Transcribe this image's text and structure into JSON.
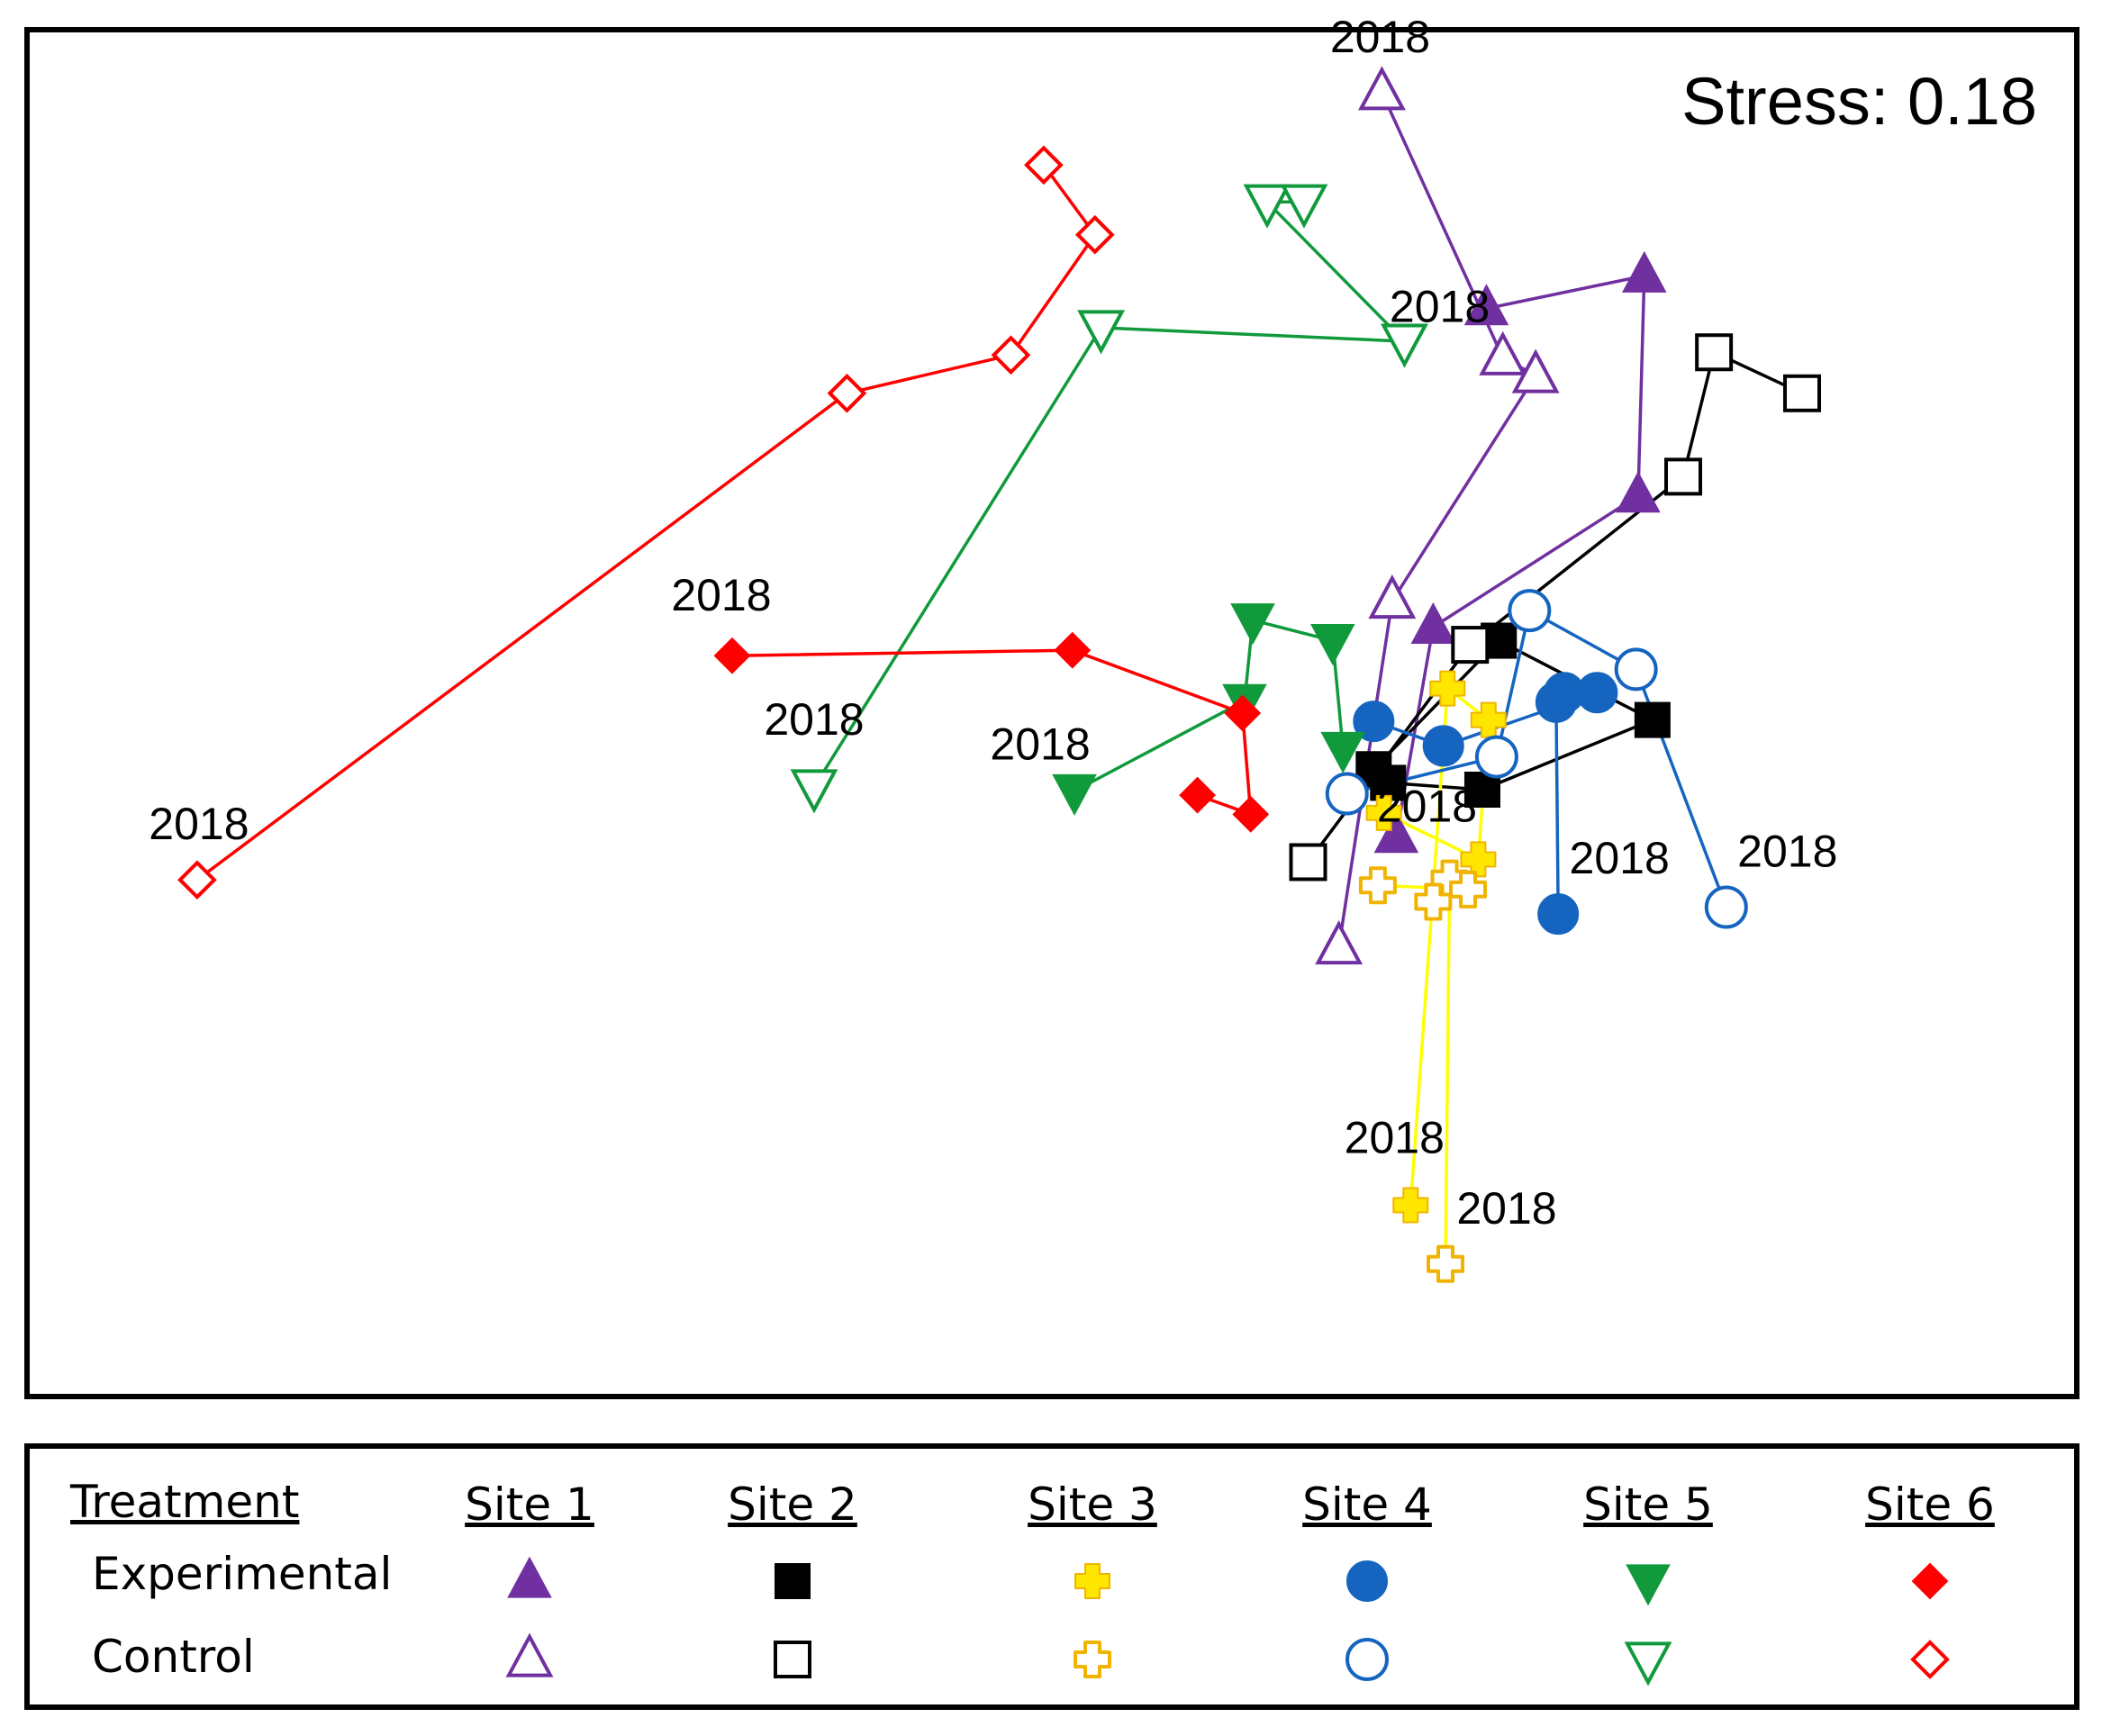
{
  "chart_data": {
    "type": "scatter",
    "subtype": "nMDS ordination trajectories",
    "stress_label": "Stress: 0.18",
    "xlim": [
      0,
      100
    ],
    "ylim": [
      0,
      100
    ],
    "axes_visible": false,
    "grid": false,
    "colors": {
      "site1": "#7030a0",
      "site2": "#000000",
      "site3": "#ffe600",
      "site3_outline": "#f0b400",
      "site3_line": "#ffff00",
      "site4": "#1565c0",
      "site5": "#109a3c",
      "site6": "#ff0000"
    },
    "series": [
      {
        "name": "Site 1 Experimental",
        "site": "Site 1",
        "treatment": "Experimental",
        "marker": "triangle-up",
        "filled": true,
        "color": "#7030a0",
        "points": [
          [
            71.2,
            79.6
          ],
          [
            78.9,
            82.0
          ],
          [
            78.6,
            65.9
          ],
          [
            68.6,
            56.3
          ],
          [
            66.8,
            41.0
          ]
        ],
        "label": "2018"
      },
      {
        "name": "Site 1 Control",
        "site": "Site 1",
        "treatment": "Control",
        "marker": "triangle-up",
        "filled": false,
        "color": "#7030a0",
        "points": [
          [
            66.1,
            95.4
          ],
          [
            72.0,
            76.0
          ],
          [
            73.6,
            74.7
          ],
          [
            66.6,
            58.2
          ],
          [
            64.0,
            32.9
          ]
        ],
        "label": "2018"
      },
      {
        "name": "Site 2 Experimental",
        "site": "Site 2",
        "treatment": "Experimental",
        "marker": "square",
        "filled": true,
        "color": "#000000",
        "points": [
          [
            71.8,
            55.3
          ],
          [
            79.3,
            49.5
          ],
          [
            71.0,
            44.4
          ],
          [
            66.4,
            44.9
          ],
          [
            65.7,
            45.9
          ],
          [
            71.8,
            55.3
          ]
        ],
        "label": ""
      },
      {
        "name": "Site 2 Control",
        "site": "Site 2",
        "treatment": "Control",
        "marker": "square",
        "filled": false,
        "color": "#000000",
        "points": [
          [
            62.5,
            39.1
          ],
          [
            70.4,
            55.0
          ],
          [
            80.8,
            67.3
          ],
          [
            82.3,
            76.4
          ],
          [
            86.6,
            73.4
          ]
        ],
        "label": "2018"
      },
      {
        "name": "Site 3 Experimental",
        "site": "Site 3",
        "treatment": "Experimental",
        "marker": "cross",
        "filled": true,
        "color": "#ffe600",
        "points": [
          [
            67.5,
            14.0
          ],
          [
            69.3,
            51.8
          ],
          [
            71.3,
            49.5
          ],
          [
            70.8,
            39.3
          ],
          [
            66.2,
            42.7
          ]
        ],
        "label": "2018"
      },
      {
        "name": "Site 3 Control",
        "site": "Site 3",
        "treatment": "Control",
        "marker": "cross",
        "filled": false,
        "color": "#f0b400",
        "points": [
          [
            69.2,
            9.7
          ],
          [
            69.4,
            37.9
          ],
          [
            68.6,
            36.2
          ],
          [
            70.3,
            37.1
          ],
          [
            65.9,
            37.4
          ]
        ],
        "label": "2018"
      },
      {
        "name": "Site 4 Experimental",
        "site": "Site 4",
        "treatment": "Experimental",
        "marker": "circle",
        "filled": true,
        "color": "#1565c0",
        "points": [
          [
            74.7,
            35.3
          ],
          [
            74.6,
            50.8
          ],
          [
            75.0,
            51.5
          ],
          [
            76.6,
            51.5
          ],
          [
            69.1,
            47.6
          ],
          [
            65.7,
            49.4
          ]
        ],
        "label": "2018"
      },
      {
        "name": "Site 4 Control",
        "site": "Site 4",
        "treatment": "Control",
        "marker": "circle",
        "filled": false,
        "color": "#1565c0",
        "points": [
          [
            82.9,
            35.8
          ],
          [
            78.5,
            53.2
          ],
          [
            73.3,
            57.5
          ],
          [
            71.7,
            46.8
          ],
          [
            64.4,
            44.1
          ]
        ],
        "label": "2018"
      },
      {
        "name": "Site 5 Experimental",
        "site": "Site 5",
        "treatment": "Experimental",
        "marker": "triangle-down",
        "filled": true,
        "color": "#109a3c",
        "points": [
          [
            51.1,
            44.3
          ],
          [
            59.4,
            50.9
          ],
          [
            59.8,
            56.8
          ],
          [
            63.7,
            55.3
          ],
          [
            64.2,
            47.4
          ]
        ],
        "label": "2018"
      },
      {
        "name": "Site 5 Control",
        "site": "Site 5",
        "treatment": "Control",
        "marker": "triangle-down",
        "filled": false,
        "color": "#109a3c",
        "points": [
          [
            38.4,
            44.6
          ],
          [
            52.4,
            78.2
          ],
          [
            67.2,
            77.2
          ],
          [
            60.5,
            87.4
          ],
          [
            62.3,
            87.4
          ]
        ],
        "label": "2018"
      },
      {
        "name": "Site 6 Experimental",
        "site": "Site 6",
        "treatment": "Experimental",
        "marker": "diamond",
        "filled": true,
        "color": "#ff0000",
        "points": [
          [
            34.4,
            54.2
          ],
          [
            51.0,
            54.6
          ],
          [
            59.3,
            50.0
          ],
          [
            59.7,
            42.6
          ],
          [
            57.1,
            44.0
          ]
        ],
        "label": "2018"
      },
      {
        "name": "Site 6 Control",
        "site": "Site 6",
        "treatment": "Control",
        "marker": "diamond",
        "filled": false,
        "color": "#ff0000",
        "points": [
          [
            8.3,
            37.8
          ],
          [
            40.0,
            73.4
          ],
          [
            48.0,
            76.2
          ],
          [
            52.1,
            85.0
          ],
          [
            49.6,
            90.1
          ]
        ],
        "label": "2018"
      }
    ]
  },
  "legend": {
    "header": "Treatment",
    "rows": [
      "Experimental",
      "Control"
    ],
    "sites": [
      "Site 1",
      "Site 2",
      "Site 3",
      "Site 4",
      "Site 5",
      "Site 6"
    ]
  }
}
